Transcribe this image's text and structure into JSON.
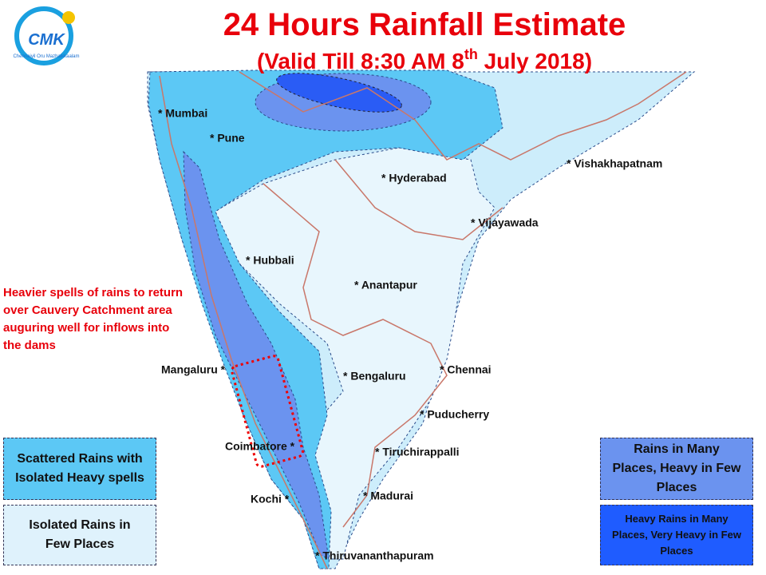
{
  "logo": {
    "name": "CMK",
    "tagline": "Chennaiyil Oru Mazhaikkaalam"
  },
  "header": {
    "title": "24 Hours Rainfall Estimate",
    "subtitle": [
      "(Valid Till 8:30 AM 8",
      "th",
      " July 2018)"
    ]
  },
  "annotation": "Heavier spells of rains to return over Cauvery Catchment area auguring well for inflows into the dams",
  "cities": [
    "* Mumbai",
    "* Pune",
    "* Hyderabad",
    "* Vishakhapatnam",
    "* Vijayawada",
    "* Hubbali",
    "* Anantapur",
    "Mangaluru *",
    "* Bengaluru",
    "* Chennai",
    "* Puducherry",
    "Coimbatore *",
    "* Tiruchirappalli",
    "Kochi *",
    "* Madurai",
    "* Thiruvananthapuram"
  ],
  "legend": [
    {
      "label": "Scattered Rains with Isolated Heavy spells",
      "color": "#5cc8f5"
    },
    {
      "label": "Isolated Rains in Few Places",
      "color": "#dff2fc"
    },
    {
      "label": "Rains in Many Places, Heavy in Few Places",
      "color": "#6b93ef"
    },
    {
      "label": "Heavy Rains in Many Places, Very Heavy in Few Places",
      "color": "#1f5cff"
    }
  ]
}
